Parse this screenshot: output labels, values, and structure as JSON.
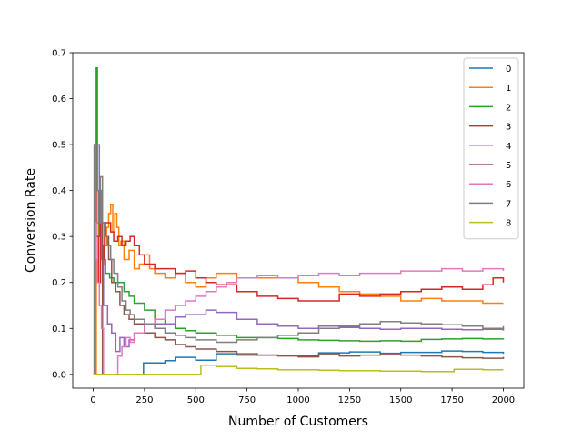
{
  "chart_data": {
    "type": "line",
    "title": "",
    "xlabel": "Number of Customers",
    "ylabel": "Conversion Rate",
    "xlim": [
      -100,
      2100
    ],
    "ylim": [
      -0.03,
      0.7
    ],
    "xticks": [
      0,
      250,
      500,
      750,
      1000,
      1250,
      1500,
      1750,
      2000
    ],
    "yticks": [
      0.0,
      0.1,
      0.2,
      0.3,
      0.4,
      0.5,
      0.6,
      0.7
    ],
    "ytick_labels": [
      "0.0",
      "0.1",
      "0.2",
      "0.3",
      "0.4",
      "0.5",
      "0.6",
      "0.7"
    ],
    "grid": false,
    "legend_position": "top-right",
    "series": [
      {
        "name": "0",
        "color": "#1f77b4",
        "points": [
          [
            0,
            0
          ],
          [
            240,
            0
          ],
          [
            245,
            0.025
          ],
          [
            350,
            0.03
          ],
          [
            400,
            0.037
          ],
          [
            500,
            0.031
          ],
          [
            600,
            0.045
          ],
          [
            700,
            0.042
          ],
          [
            800,
            0.042
          ],
          [
            900,
            0.041
          ],
          [
            1000,
            0.04
          ],
          [
            1100,
            0.047
          ],
          [
            1250,
            0.049
          ],
          [
            1400,
            0.046
          ],
          [
            1500,
            0.048
          ],
          [
            1700,
            0.051
          ],
          [
            1800,
            0.05
          ],
          [
            1900,
            0.048
          ],
          [
            2000,
            0.045
          ]
        ]
      },
      {
        "name": "1",
        "color": "#ff7f0e",
        "points": [
          [
            0,
            0
          ],
          [
            15,
            0.33
          ],
          [
            25,
            0.2
          ],
          [
            35,
            0.32
          ],
          [
            45,
            0.24
          ],
          [
            55,
            0.28
          ],
          [
            65,
            0.32
          ],
          [
            75,
            0.35
          ],
          [
            85,
            0.37
          ],
          [
            95,
            0.31
          ],
          [
            105,
            0.35
          ],
          [
            115,
            0.32
          ],
          [
            125,
            0.28
          ],
          [
            135,
            0.29
          ],
          [
            150,
            0.25
          ],
          [
            175,
            0.27
          ],
          [
            200,
            0.23
          ],
          [
            225,
            0.24
          ],
          [
            250,
            0.26
          ],
          [
            275,
            0.23
          ],
          [
            300,
            0.22
          ],
          [
            350,
            0.21
          ],
          [
            400,
            0.22
          ],
          [
            450,
            0.2
          ],
          [
            500,
            0.19
          ],
          [
            550,
            0.21
          ],
          [
            600,
            0.22
          ],
          [
            700,
            0.21
          ],
          [
            800,
            0.21
          ],
          [
            900,
            0.21
          ],
          [
            1000,
            0.2
          ],
          [
            1100,
            0.19
          ],
          [
            1200,
            0.18
          ],
          [
            1300,
            0.175
          ],
          [
            1400,
            0.17
          ],
          [
            1500,
            0.16
          ],
          [
            1600,
            0.165
          ],
          [
            1700,
            0.16
          ],
          [
            1800,
            0.16
          ],
          [
            1900,
            0.155
          ],
          [
            2000,
            0.155
          ]
        ]
      },
      {
        "name": "2",
        "color": "#2ca02c",
        "points": [
          [
            0,
            0
          ],
          [
            5,
            0.5
          ],
          [
            10,
            0.33
          ],
          [
            15,
            0.667
          ],
          [
            20,
            0.4
          ],
          [
            30,
            0.3
          ],
          [
            40,
            0.28
          ],
          [
            50,
            0.25
          ],
          [
            60,
            0.22
          ],
          [
            80,
            0.21
          ],
          [
            100,
            0.2
          ],
          [
            125,
            0.2
          ],
          [
            150,
            0.18
          ],
          [
            175,
            0.17
          ],
          [
            200,
            0.155
          ],
          [
            250,
            0.14
          ],
          [
            300,
            0.12
          ],
          [
            350,
            0.11
          ],
          [
            400,
            0.1
          ],
          [
            450,
            0.095
          ],
          [
            500,
            0.09
          ],
          [
            600,
            0.085
          ],
          [
            700,
            0.08
          ],
          [
            800,
            0.08
          ],
          [
            900,
            0.078
          ],
          [
            1000,
            0.075
          ],
          [
            1100,
            0.074
          ],
          [
            1200,
            0.073
          ],
          [
            1300,
            0.072
          ],
          [
            1400,
            0.073
          ],
          [
            1500,
            0.072
          ],
          [
            1600,
            0.076
          ],
          [
            1700,
            0.077
          ],
          [
            1800,
            0.078
          ],
          [
            1900,
            0.077
          ],
          [
            2000,
            0.076
          ]
        ]
      },
      {
        "name": "3",
        "color": "#d62728",
        "points": [
          [
            0,
            0
          ],
          [
            5,
            0.5
          ],
          [
            15,
            0.3
          ],
          [
            25,
            0.2
          ],
          [
            35,
            0.33
          ],
          [
            45,
            0.25
          ],
          [
            55,
            0.33
          ],
          [
            70,
            0.33
          ],
          [
            85,
            0.31
          ],
          [
            100,
            0.29
          ],
          [
            120,
            0.3
          ],
          [
            140,
            0.28
          ],
          [
            160,
            0.29
          ],
          [
            180,
            0.3
          ],
          [
            200,
            0.28
          ],
          [
            225,
            0.26
          ],
          [
            250,
            0.24
          ],
          [
            300,
            0.23
          ],
          [
            350,
            0.23
          ],
          [
            400,
            0.22
          ],
          [
            450,
            0.225
          ],
          [
            500,
            0.21
          ],
          [
            550,
            0.2
          ],
          [
            600,
            0.195
          ],
          [
            700,
            0.18
          ],
          [
            800,
            0.17
          ],
          [
            900,
            0.165
          ],
          [
            1000,
            0.16
          ],
          [
            1100,
            0.16
          ],
          [
            1200,
            0.175
          ],
          [
            1300,
            0.17
          ],
          [
            1400,
            0.175
          ],
          [
            1500,
            0.18
          ],
          [
            1600,
            0.185
          ],
          [
            1700,
            0.19
          ],
          [
            1800,
            0.185
          ],
          [
            1900,
            0.195
          ],
          [
            1950,
            0.21
          ],
          [
            2000,
            0.2
          ]
        ]
      },
      {
        "name": "4",
        "color": "#9467bd",
        "points": [
          [
            0,
            0
          ],
          [
            10,
            0.5
          ],
          [
            20,
            0.5
          ],
          [
            30,
            0.4
          ],
          [
            40,
            0.25
          ],
          [
            50,
            0.15
          ],
          [
            70,
            0.11
          ],
          [
            90,
            0.09
          ],
          [
            110,
            0.05
          ],
          [
            130,
            0.08
          ],
          [
            150,
            0.06
          ],
          [
            175,
            0.075
          ],
          [
            200,
            0.09
          ],
          [
            250,
            0.11
          ],
          [
            300,
            0.11
          ],
          [
            350,
            0.11
          ],
          [
            400,
            0.125
          ],
          [
            450,
            0.13
          ],
          [
            500,
            0.13
          ],
          [
            550,
            0.14
          ],
          [
            600,
            0.135
          ],
          [
            700,
            0.12
          ],
          [
            800,
            0.11
          ],
          [
            900,
            0.105
          ],
          [
            1000,
            0.1
          ],
          [
            1100,
            0.105
          ],
          [
            1200,
            0.102
          ],
          [
            1300,
            0.1
          ],
          [
            1400,
            0.098
          ],
          [
            1500,
            0.1
          ],
          [
            1600,
            0.1
          ],
          [
            1700,
            0.098
          ],
          [
            1800,
            0.097
          ],
          [
            1900,
            0.098
          ],
          [
            2000,
            0.095
          ]
        ]
      },
      {
        "name": "5",
        "color": "#8c564b",
        "points": [
          [
            0,
            0
          ],
          [
            40,
            0
          ],
          [
            45,
            0.33
          ],
          [
            60,
            0.3
          ],
          [
            75,
            0.25
          ],
          [
            90,
            0.2
          ],
          [
            110,
            0.18
          ],
          [
            130,
            0.15
          ],
          [
            150,
            0.13
          ],
          [
            175,
            0.12
          ],
          [
            200,
            0.11
          ],
          [
            250,
            0.09
          ],
          [
            300,
            0.08
          ],
          [
            350,
            0.075
          ],
          [
            400,
            0.065
          ],
          [
            450,
            0.06
          ],
          [
            500,
            0.055
          ],
          [
            600,
            0.05
          ],
          [
            700,
            0.045
          ],
          [
            800,
            0.042
          ],
          [
            900,
            0.04
          ],
          [
            1000,
            0.038
          ],
          [
            1100,
            0.045
          ],
          [
            1200,
            0.04
          ],
          [
            1300,
            0.042
          ],
          [
            1400,
            0.045
          ],
          [
            1500,
            0.042
          ],
          [
            1600,
            0.04
          ],
          [
            1700,
            0.038
          ],
          [
            1800,
            0.036
          ],
          [
            1900,
            0.035
          ],
          [
            2000,
            0.038
          ]
        ]
      },
      {
        "name": "6",
        "color": "#e377c2",
        "points": [
          [
            0,
            0
          ],
          [
            5,
            0.5
          ],
          [
            10,
            0.33
          ],
          [
            15,
            0.25
          ],
          [
            20,
            0.2
          ],
          [
            30,
            0.15
          ],
          [
            40,
            0.1
          ],
          [
            50,
            0
          ],
          [
            100,
            0
          ],
          [
            115,
            0
          ],
          [
            120,
            0.04
          ],
          [
            140,
            0.06
          ],
          [
            160,
            0.08
          ],
          [
            180,
            0.07
          ],
          [
            200,
            0.09
          ],
          [
            250,
            0.11
          ],
          [
            300,
            0.12
          ],
          [
            350,
            0.14
          ],
          [
            400,
            0.15
          ],
          [
            450,
            0.16
          ],
          [
            500,
            0.17
          ],
          [
            550,
            0.18
          ],
          [
            600,
            0.19
          ],
          [
            650,
            0.2
          ],
          [
            700,
            0.21
          ],
          [
            800,
            0.215
          ],
          [
            900,
            0.21
          ],
          [
            1000,
            0.215
          ],
          [
            1100,
            0.22
          ],
          [
            1200,
            0.215
          ],
          [
            1300,
            0.22
          ],
          [
            1400,
            0.22
          ],
          [
            1500,
            0.225
          ],
          [
            1600,
            0.225
          ],
          [
            1700,
            0.23
          ],
          [
            1800,
            0.225
          ],
          [
            1900,
            0.23
          ],
          [
            2000,
            0.225
          ]
        ]
      },
      {
        "name": "7",
        "color": "#7f7f7f",
        "points": [
          [
            0,
            0
          ],
          [
            5,
            0.5
          ],
          [
            15,
            0.4
          ],
          [
            25,
            0.33
          ],
          [
            35,
            0.43
          ],
          [
            45,
            0.33
          ],
          [
            55,
            0.3
          ],
          [
            70,
            0.28
          ],
          [
            85,
            0.25
          ],
          [
            100,
            0.22
          ],
          [
            120,
            0.19
          ],
          [
            140,
            0.16
          ],
          [
            160,
            0.14
          ],
          [
            180,
            0.13
          ],
          [
            200,
            0.12
          ],
          [
            250,
            0.11
          ],
          [
            300,
            0.1
          ],
          [
            350,
            0.09
          ],
          [
            400,
            0.085
          ],
          [
            450,
            0.08
          ],
          [
            500,
            0.075
          ],
          [
            600,
            0.07
          ],
          [
            700,
            0.075
          ],
          [
            800,
            0.08
          ],
          [
            900,
            0.085
          ],
          [
            1000,
            0.09
          ],
          [
            1100,
            0.1
          ],
          [
            1200,
            0.105
          ],
          [
            1300,
            0.11
          ],
          [
            1400,
            0.115
          ],
          [
            1500,
            0.112
          ],
          [
            1600,
            0.11
          ],
          [
            1700,
            0.108
          ],
          [
            1800,
            0.105
          ],
          [
            1900,
            0.1
          ],
          [
            2000,
            0.105
          ]
        ]
      },
      {
        "name": "8",
        "color": "#bcbd22",
        "points": [
          [
            0,
            0
          ],
          [
            520,
            0
          ],
          [
            525,
            0.02
          ],
          [
            600,
            0.017
          ],
          [
            700,
            0.013
          ],
          [
            800,
            0.012
          ],
          [
            900,
            0.01
          ],
          [
            1000,
            0.01
          ],
          [
            1100,
            0.009
          ],
          [
            1200,
            0.008
          ],
          [
            1300,
            0.008
          ],
          [
            1400,
            0.007
          ],
          [
            1500,
            0.007
          ],
          [
            1600,
            0.006
          ],
          [
            1700,
            0.006
          ],
          [
            1750,
            0.006
          ],
          [
            1760,
            0.011
          ],
          [
            1800,
            0.011
          ],
          [
            1900,
            0.01
          ],
          [
            2000,
            0.01
          ]
        ]
      }
    ]
  }
}
